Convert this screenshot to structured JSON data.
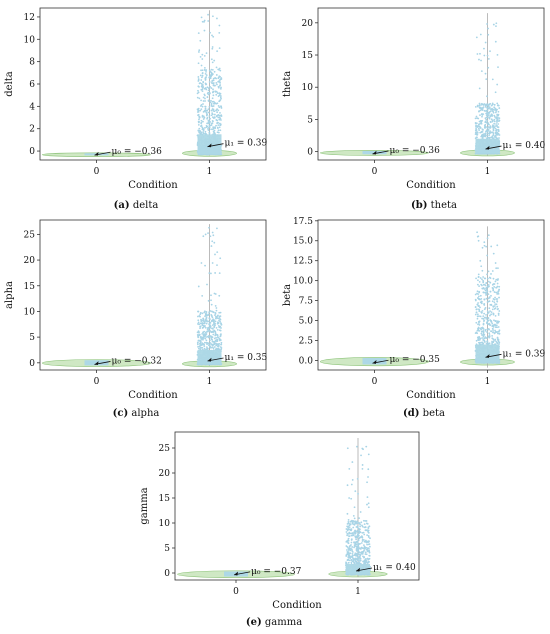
{
  "chart_data": [
    {
      "type": "violin-strip",
      "panel_letter": "(a)",
      "caption_text": "delta",
      "xlabel": "Condition",
      "ylabel": "delta",
      "categories": [
        "0",
        "1"
      ],
      "yticks": [
        0,
        2,
        4,
        6,
        8,
        10,
        12
      ],
      "ylim": [
        -0.8,
        12.8
      ],
      "means": [
        {
          "label": "μ₀ = −0.36",
          "value": -0.36
        },
        {
          "label": "μ₁ = 0.39",
          "value": 0.39
        }
      ],
      "group0": {
        "min": -0.36,
        "max": -0.2
      },
      "group1": {
        "box_low": -0.3,
        "box_high": 1.5,
        "whisker_low": -0.4,
        "whisker_high": 12.6,
        "dense_high": 7.5,
        "points_max": 12.2
      }
    },
    {
      "type": "violin-strip",
      "panel_letter": "(b)",
      "caption_text": "theta",
      "xlabel": "Condition",
      "ylabel": "theta",
      "categories": [
        "0",
        "1"
      ],
      "yticks": [
        0,
        5,
        10,
        15,
        20
      ],
      "ylim": [
        -1.3,
        22.3
      ],
      "means": [
        {
          "label": "μ₀ = −0.36",
          "value": -0.36
        },
        {
          "label": "μ₁ = 0.40",
          "value": 0.4
        }
      ],
      "group0": {
        "min": -0.4,
        "max": 0.1
      },
      "group1": {
        "box_low": -0.3,
        "box_high": 2.0,
        "whisker_low": -0.6,
        "whisker_high": 21.5,
        "dense_high": 7.5,
        "points_max": 20.5
      }
    },
    {
      "type": "violin-strip",
      "panel_letter": "(c)",
      "caption_text": "alpha",
      "xlabel": "Condition",
      "ylabel": "alpha",
      "categories": [
        "0",
        "1"
      ],
      "yticks": [
        0,
        5,
        10,
        15,
        20,
        25
      ],
      "ylim": [
        -1.4,
        27.8
      ],
      "means": [
        {
          "label": "μ₀ = −0.32",
          "value": -0.32
        },
        {
          "label": "μ₁ = 0.35",
          "value": 0.35
        }
      ],
      "group0": {
        "min": -0.5,
        "max": 0.5
      },
      "group1": {
        "box_low": -0.3,
        "box_high": 2.5,
        "whisker_low": -0.6,
        "whisker_high": 27.0,
        "dense_high": 10,
        "points_max": 26.5
      }
    },
    {
      "type": "violin-strip",
      "panel_letter": "(d)",
      "caption_text": "beta",
      "xlabel": "Condition",
      "ylabel": "beta",
      "categories": [
        "0",
        "1"
      ],
      "yticks": [
        0.0,
        2.5,
        5.0,
        7.5,
        10.0,
        12.5,
        15.0,
        17.5
      ],
      "ytick_labels": [
        "0.0",
        "2.5",
        "5.0",
        "7.5",
        "10.0",
        "12.5",
        "15.0",
        "17.5"
      ],
      "ylim": [
        -1.2,
        17.6
      ],
      "means": [
        {
          "label": "μ₀ = −0.35",
          "value": -0.35
        },
        {
          "label": "μ₁ = 0.39",
          "value": 0.39
        }
      ],
      "group0": {
        "min": -0.5,
        "max": 0.3
      },
      "group1": {
        "box_low": -0.3,
        "box_high": 2.0,
        "whisker_low": -0.9,
        "whisker_high": 16.8,
        "dense_high": 10.5,
        "points_max": 16.2
      }
    },
    {
      "type": "violin-strip",
      "panel_letter": "(e)",
      "caption_text": "gamma",
      "xlabel": "Condition",
      "ylabel": "gamma",
      "categories": [
        "0",
        "1"
      ],
      "yticks": [
        0,
        5,
        10,
        15,
        20,
        25
      ],
      "ylim": [
        -1.4,
        28.2
      ],
      "means": [
        {
          "label": "μ₀ = −0.37",
          "value": -0.37
        },
        {
          "label": "μ₁ = 0.40",
          "value": 0.4
        }
      ],
      "group0": {
        "min": -0.7,
        "max": 0.3
      },
      "group1": {
        "box_low": -0.3,
        "box_high": 1.8,
        "whisker_low": -0.8,
        "whisker_high": 27.0,
        "dense_high": 10.5,
        "points_max": 26.5
      }
    }
  ],
  "colors": {
    "points": "#a8d4e6",
    "violin": "#cfe8c4",
    "violin_edge": "#8fc47c",
    "box": "#add8e6",
    "whisker": "#aaaaaa"
  }
}
